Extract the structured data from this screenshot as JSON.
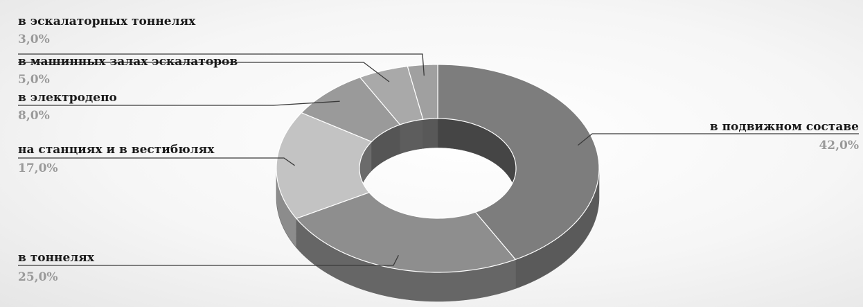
{
  "chart_data": {
    "type": "pie",
    "variant": "3d-donut",
    "title": "",
    "slices": [
      {
        "label": "в подвижном составе",
        "value": 42.0,
        "value_label": "42,0%",
        "color": "#7d7d7d"
      },
      {
        "label": "в тоннелях",
        "value": 25.0,
        "value_label": "25,0%",
        "color": "#8e8e8e"
      },
      {
        "label": "на станциях и в вестибюлях",
        "value": 17.0,
        "value_label": "17,0%",
        "color": "#c3c3c3"
      },
      {
        "label": "в электродепо",
        "value": 8.0,
        "value_label": "8,0%",
        "color": "#9a9a9a"
      },
      {
        "label": "в машинных залах эскалаторов",
        "value": 5.0,
        "value_label": "5,0%",
        "color": "#a9a9a9"
      },
      {
        "label": "в эскалаторных тоннелях",
        "value": 3.0,
        "value_label": "3,0%",
        "color": "#a0a0a0"
      }
    ],
    "legend": "none",
    "data_labels": "outside-with-leader-lines",
    "grid": false
  }
}
